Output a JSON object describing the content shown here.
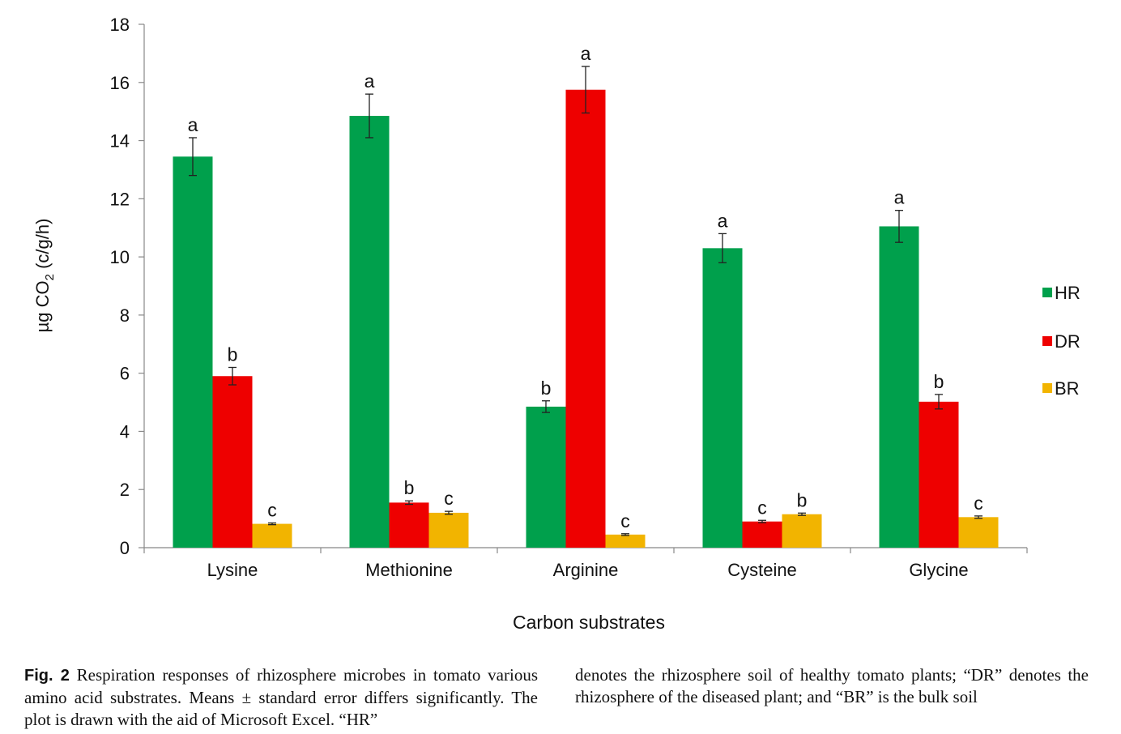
{
  "chart_data": {
    "type": "bar",
    "categories": [
      "Lysine",
      "Methionine",
      "Arginine",
      "Cysteine",
      "Glycine"
    ],
    "series": [
      {
        "name": "HR",
        "color": "#00a04c",
        "values": [
          13.45,
          14.85,
          4.85,
          10.3,
          11.05
        ],
        "errors": [
          0.65,
          0.75,
          0.2,
          0.5,
          0.55
        ],
        "letters": [
          "a",
          "a",
          "b",
          "a",
          "a"
        ]
      },
      {
        "name": "DR",
        "color": "#ee0000",
        "values": [
          5.9,
          1.55,
          15.75,
          0.9,
          5.02
        ],
        "errors": [
          0.3,
          0.06,
          0.8,
          0.04,
          0.25
        ],
        "letters": [
          "b",
          "b",
          "a",
          "c",
          "b"
        ]
      },
      {
        "name": "BR",
        "color": "#f2b400",
        "values": [
          0.82,
          1.2,
          0.45,
          1.15,
          1.05
        ],
        "errors": [
          0.03,
          0.05,
          0.03,
          0.04,
          0.04
        ],
        "letters": [
          "c",
          "c",
          "c",
          "b",
          "c"
        ]
      }
    ],
    "ylim": [
      0,
      18
    ],
    "yticks": [
      0,
      2,
      4,
      6,
      8,
      10,
      12,
      14,
      16,
      18
    ],
    "ylabel_prefix": "µg CO",
    "ylabel_sub": "2",
    "ylabel_suffix": " (c/g/h)",
    "xlabel": "Carbon substrates",
    "legend_position": "right",
    "grid": false
  },
  "caption": {
    "label": "Fig. 2",
    "left_text": " Respiration responses of rhizosphere microbes in tomato various amino acid substrates. Means ± standard error differs significantly. The plot is drawn with the aid of Microsoft Excel. “HR”",
    "right_text": "denotes the rhizosphere soil of healthy tomato plants; “DR” denotes the rhizosphere of the diseased plant; and “BR” is the bulk soil"
  }
}
